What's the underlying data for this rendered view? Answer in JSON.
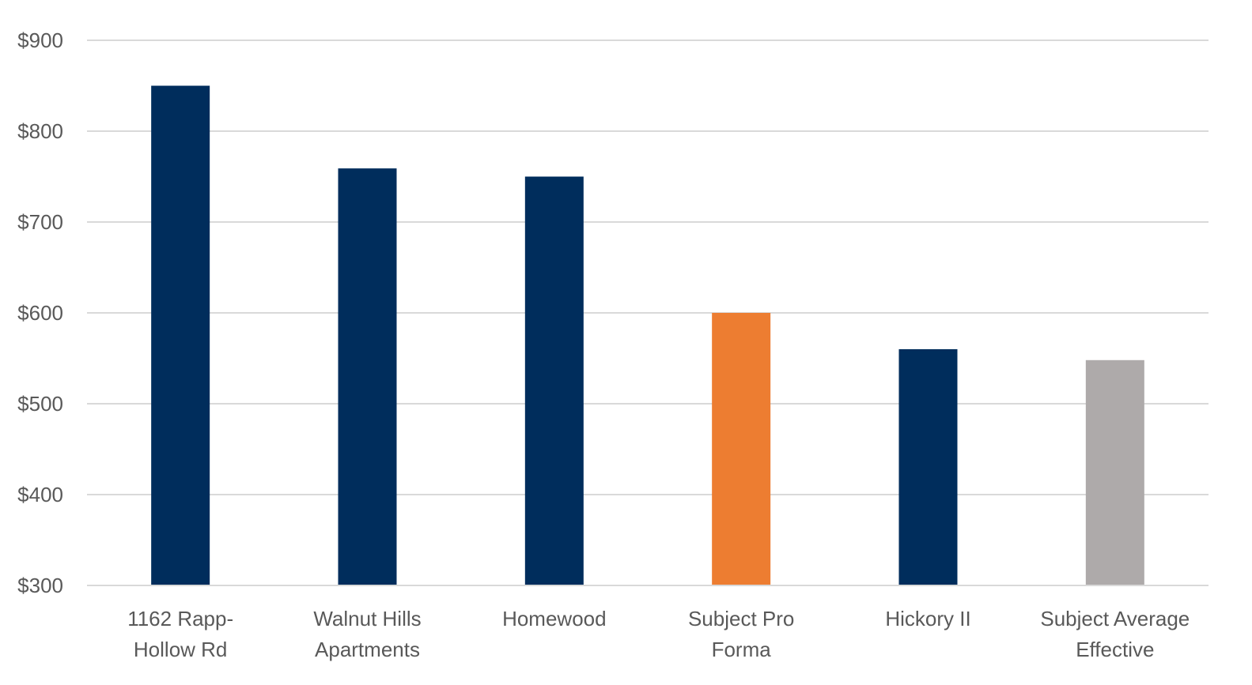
{
  "chart_data": {
    "type": "bar",
    "title": "",
    "xlabel": "",
    "ylabel": "",
    "ylim": [
      300,
      900
    ],
    "yticks": [
      300,
      400,
      500,
      600,
      700,
      800,
      900
    ],
    "ytick_labels": [
      "$300",
      "$400",
      "$500",
      "$600",
      "$700",
      "$800",
      "$900"
    ],
    "categories": [
      [
        "1162 Rapp-",
        "Hollow Rd"
      ],
      [
        "Walnut Hills",
        "Apartments"
      ],
      [
        "Homewood"
      ],
      [
        "Subject Pro",
        "Forma"
      ],
      [
        "Hickory II"
      ],
      [
        "Subject Average",
        "Effective"
      ]
    ],
    "values": [
      850,
      759,
      750,
      600,
      560,
      548
    ],
    "colors": [
      "#002d5c",
      "#002d5c",
      "#002d5c",
      "#ed7d31",
      "#002d5c",
      "#aeaaaa"
    ],
    "grid": true,
    "legend": "none"
  }
}
